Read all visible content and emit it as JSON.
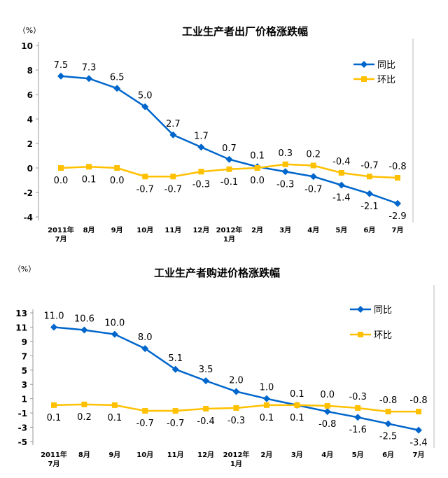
{
  "chart_data": [
    {
      "type": "line",
      "title": "工业生产者出厂价格涨跌幅",
      "ylabel": "（%）",
      "ylim": [
        -4,
        10
      ],
      "yticks": [
        -4,
        -2,
        0,
        2,
        4,
        6,
        8,
        10
      ],
      "categories": [
        [
          "2011年",
          "7月"
        ],
        [
          "8月"
        ],
        [
          "9月"
        ],
        [
          "10月"
        ],
        [
          "11月"
        ],
        [
          "12月"
        ],
        [
          "2012年",
          "1月"
        ],
        [
          "2月"
        ],
        [
          "3月"
        ],
        [
          "4月"
        ],
        [
          "5月"
        ],
        [
          "6月"
        ],
        [
          "7月"
        ]
      ],
      "legend_position": "top-right",
      "series": [
        {
          "name": "同比",
          "color": "#0066CC",
          "marker": "diamond",
          "values": [
            7.5,
            7.3,
            6.5,
            5.0,
            2.7,
            1.7,
            0.7,
            0.1,
            -0.3,
            -0.7,
            -1.4,
            -2.1,
            -2.9
          ],
          "labels": [
            "7.5",
            "7.3",
            "6.5",
            "5.0",
            "2.7",
            "1.7",
            "0.7",
            "0.1",
            "-0.3",
            "-0.7",
            "-1.4",
            "-2.1",
            "-2.9"
          ]
        },
        {
          "name": "环比",
          "color": "#FFC000",
          "marker": "square",
          "values": [
            0.0,
            0.1,
            0.0,
            -0.7,
            -0.7,
            -0.3,
            -0.1,
            0.0,
            0.3,
            0.2,
            -0.4,
            -0.7,
            -0.8
          ],
          "labels": [
            "0.0",
            "0.1",
            "0.0",
            "-0.7",
            "-0.7",
            "-0.3",
            "-0.1",
            "0.0",
            "0.3",
            "0.2",
            "-0.4",
            "-0.7",
            "-0.8"
          ]
        }
      ]
    },
    {
      "type": "line",
      "title": "工业生产者购进价格涨跌幅",
      "ylabel": "（%）",
      "ylim": [
        -5,
        13
      ],
      "yticks": [
        -5,
        -3,
        -1,
        1,
        3,
        5,
        7,
        9,
        11,
        13
      ],
      "categories": [
        [
          "2011年",
          "7月"
        ],
        [
          "8月"
        ],
        [
          "9月"
        ],
        [
          "10月"
        ],
        [
          "11月"
        ],
        [
          "12月"
        ],
        [
          "2012年",
          "1月"
        ],
        [
          "2月"
        ],
        [
          "3月"
        ],
        [
          "4月"
        ],
        [
          "5月"
        ],
        [
          "6月"
        ],
        [
          "7月"
        ]
      ],
      "legend_position": "top-right",
      "series": [
        {
          "name": "同比",
          "color": "#0066CC",
          "marker": "diamond",
          "values": [
            11.0,
            10.6,
            10.0,
            8.0,
            5.1,
            3.5,
            2.0,
            1.0,
            0.1,
            -0.8,
            -1.6,
            -2.5,
            -3.4
          ],
          "labels": [
            "11.0",
            "10.6",
            "10.0",
            "8.0",
            "5.1",
            "3.5",
            "2.0",
            "1.0",
            "0.1",
            "-0.8",
            "-1.6",
            "-2.5",
            "-3.4"
          ]
        },
        {
          "name": "环比",
          "color": "#FFC000",
          "marker": "square",
          "values": [
            0.1,
            0.2,
            0.1,
            -0.7,
            -0.7,
            -0.4,
            -0.3,
            0.1,
            0.1,
            0.0,
            -0.3,
            -0.8,
            -0.8
          ],
          "labels": [
            "0.1",
            "0.2",
            "0.1",
            "-0.7",
            "-0.7",
            "-0.4",
            "-0.3",
            "0.1",
            "0.1",
            "0.0",
            "-0.3",
            "-0.8",
            "-0.8"
          ]
        }
      ]
    }
  ]
}
